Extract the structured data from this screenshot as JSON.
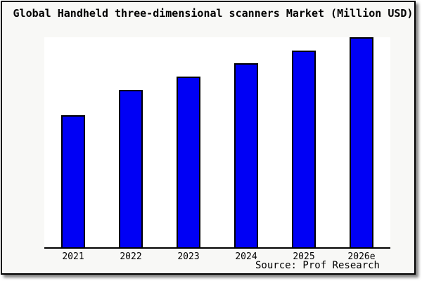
{
  "title": "Global Handheld three-dimensional scanners Market (Million USD)",
  "source": "Source: Prof Research",
  "colors": {
    "bar_fill": "#0000f5",
    "bar_border": "#000000",
    "figure_bg": "#f8f8f6",
    "plot_bg": "#ffffff",
    "frame_border": "#000000"
  },
  "chart_data": {
    "type": "bar",
    "title": "Global Handheld three-dimensional scanners Market (Million USD)",
    "categories": [
      "2021",
      "2022",
      "2023",
      "2024",
      "2025",
      "2026e"
    ],
    "values_pct_of_max": [
      63,
      75,
      81.5,
      87.7,
      93.7,
      100
    ],
    "values_note": "No y-axis ticks or value labels are shown; values are bar heights estimated from pixels as percent of the tallest (2026e) bar",
    "xlabel": "",
    "ylabel": "",
    "grid": false,
    "legend": false,
    "value_axis_labeled": false,
    "bar_color": "#0000f5",
    "annotation": "Source: Prof Research"
  }
}
